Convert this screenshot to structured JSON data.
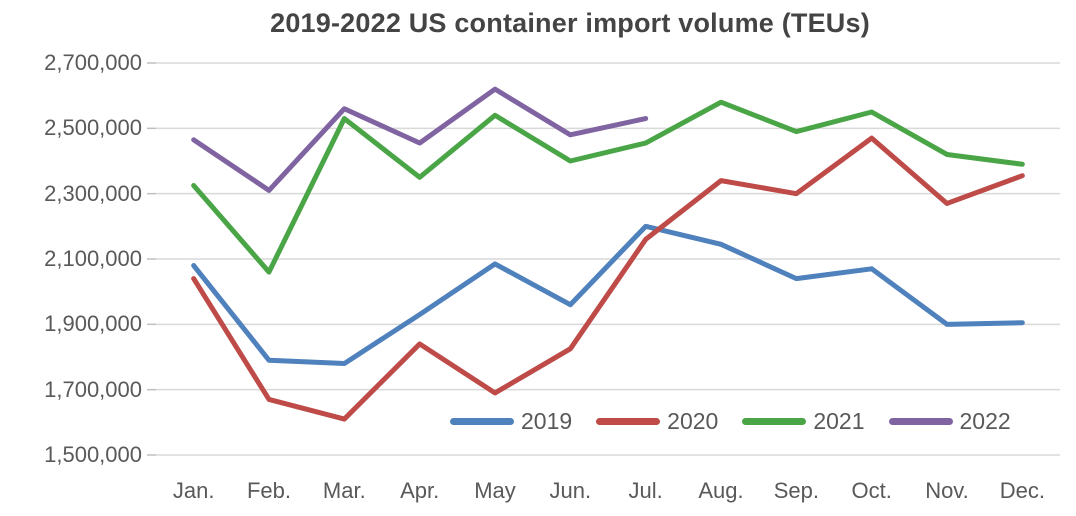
{
  "chart_data": {
    "type": "line",
    "title": "2019-2022 US container import volume (TEUs)",
    "categories": [
      "Jan.",
      "Feb.",
      "Mar.",
      "Apr.",
      "May",
      "Jun.",
      "Jul.",
      "Aug.",
      "Sep.",
      "Oct.",
      "Nov.",
      "Dec."
    ],
    "xlabel": "",
    "ylabel": "",
    "ylim": [
      1500000,
      2700000
    ],
    "y_tick_step": 200000,
    "y_tick_labels": [
      "1,500,000",
      "1,700,000",
      "1,900,000",
      "2,100,000",
      "2,300,000",
      "2,500,000",
      "2,700,000"
    ],
    "grid": "horizontal",
    "legend_position": "bottom-inside",
    "series": [
      {
        "name": "2019",
        "color": "#4F81BD",
        "values": [
          2080000,
          1790000,
          1780000,
          1930000,
          2085000,
          1960000,
          2200000,
          2145000,
          2040000,
          2070000,
          1900000,
          1905000
        ]
      },
      {
        "name": "2020",
        "color": "#BE4B48",
        "values": [
          2040000,
          1670000,
          1610000,
          1840000,
          1690000,
          1825000,
          2160000,
          2340000,
          2300000,
          2470000,
          2270000,
          2355000
        ]
      },
      {
        "name": "2021",
        "color": "#4AA547",
        "values": [
          2325000,
          2060000,
          2530000,
          2350000,
          2540000,
          2400000,
          2455000,
          2580000,
          2490000,
          2550000,
          2420000,
          2390000
        ]
      },
      {
        "name": "2022",
        "color": "#8064A2",
        "values": [
          2465000,
          2310000,
          2560000,
          2455000,
          2620000,
          2480000,
          2530000,
          null,
          null,
          null,
          null,
          null
        ]
      }
    ],
    "layout": {
      "gridline_color": "#D9D9D9",
      "tick_color": "#BFBFBF",
      "axis_text_color": "#595959",
      "title_color": "#444444",
      "background_color": "#FFFFFF",
      "line_width": 5
    }
  }
}
